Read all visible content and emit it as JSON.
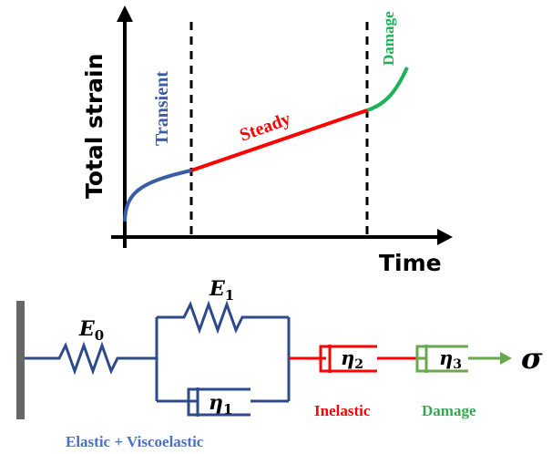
{
  "curve": {
    "ylabel": "Total strain",
    "xlabel": "Time",
    "phases": [
      {
        "label": "Transient",
        "color": "#3a5da8"
      },
      {
        "label": "Steady",
        "color": "#ff0000"
      },
      {
        "label": "Damage",
        "color": "#1bb356"
      }
    ]
  },
  "model": {
    "e0": {
      "base": "E",
      "sub": "0"
    },
    "e1": {
      "base": "E",
      "sub": "1"
    },
    "eta1": {
      "base": "η",
      "sub": "1"
    },
    "eta2": {
      "base": "η",
      "sub": "2"
    },
    "eta3": {
      "base": "η",
      "sub": "3"
    },
    "stress": "σ",
    "labels": {
      "elastic": "Elastic + Viscoelastic",
      "inelastic": "Inelastic",
      "damage": "Damage"
    },
    "colors": {
      "wall": "#666666",
      "viscoelastic": "#2e4a8c",
      "inelastic": "#ff0000",
      "damage": "#6aa84f",
      "elastic_text": "#4a72c4",
      "inelastic_text": "#ff0000",
      "damage_text": "#33a852"
    }
  }
}
